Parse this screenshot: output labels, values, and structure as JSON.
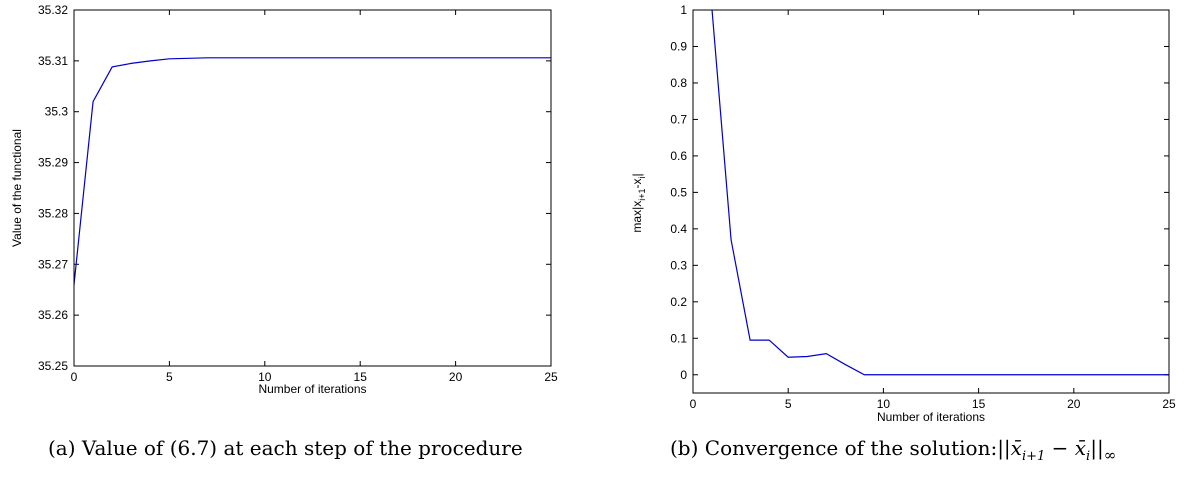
{
  "line_color": "#0000cc",
  "chart_data": [
    {
      "type": "line",
      "xlabel": "Number of iterations",
      "ylabel": "Value of the functional",
      "xlim": [
        0,
        25
      ],
      "ylim": [
        35.25,
        35.32
      ],
      "xticks": [
        0,
        5,
        10,
        15,
        20,
        25
      ],
      "xtick_labels": [
        "0",
        "5",
        "10",
        "15",
        "20",
        "25"
      ],
      "yticks": [
        35.25,
        35.26,
        35.27,
        35.28,
        35.29,
        35.3,
        35.31,
        35.32
      ],
      "ytick_labels": [
        "35.25",
        "35.26",
        "35.27",
        "35.28",
        "35.29",
        "35.3",
        "35.31",
        "35.32"
      ],
      "grid": false,
      "series": [
        {
          "x": [
            0,
            1,
            2,
            3,
            4,
            5,
            6,
            7,
            8,
            9,
            10,
            11,
            12,
            13,
            14,
            15,
            16,
            17,
            18,
            19,
            20,
            21,
            22,
            23,
            24,
            25
          ],
          "y": [
            35.266,
            35.302,
            35.3088,
            35.3095,
            35.31,
            35.3104,
            35.3105,
            35.3106,
            35.3106,
            35.3106,
            35.3106,
            35.3106,
            35.3106,
            35.3106,
            35.3106,
            35.3106,
            35.3106,
            35.3106,
            35.3106,
            35.3106,
            35.3106,
            35.3106,
            35.3106,
            35.3106,
            35.3106,
            35.3106
          ]
        }
      ]
    },
    {
      "type": "line",
      "xlabel": "Number of iterations",
      "ylabel": "max|x",
      "ylabel_sub1": "i+1",
      "ylabel_mid": "-x",
      "ylabel_sub2": "i",
      "ylabel_end": "|",
      "xlim": [
        0,
        25
      ],
      "ylim": [
        -0.05,
        1
      ],
      "xticks": [
        0,
        5,
        10,
        15,
        20,
        25
      ],
      "xtick_labels": [
        "0",
        "5",
        "10",
        "15",
        "20",
        "25"
      ],
      "yticks": [
        0,
        0.1,
        0.2,
        0.3,
        0.4,
        0.5,
        0.6,
        0.7,
        0.8,
        0.9,
        1
      ],
      "ytick_labels": [
        "0",
        "0.1",
        "0.2",
        "0.3",
        "0.4",
        "0.5",
        "0.6",
        "0.7",
        "0.8",
        "0.9",
        "1"
      ],
      "grid": false,
      "series": [
        {
          "x": [
            1,
            2,
            3,
            4,
            5,
            6,
            7,
            8,
            9,
            10,
            11,
            12,
            13,
            14,
            15,
            16,
            17,
            18,
            19,
            20,
            21,
            22,
            23,
            24,
            25
          ],
          "y": [
            1.0,
            0.37,
            0.095,
            0.095,
            0.048,
            0.05,
            0.058,
            0.028,
            0.0,
            0.0,
            0.0,
            0.0,
            0.0,
            0.0,
            0.0,
            0.0,
            0.0,
            0.0,
            0.0,
            0.0,
            0.0,
            0.0,
            0.0,
            0.0,
            0.0
          ]
        }
      ]
    }
  ],
  "captions": {
    "a": "(a) Value of (6.7) at each step of the procedure",
    "b_text": "(b) Convergence of the solution:",
    "b_math": "||x̄",
    "b_math_sub1": "i+1",
    "b_math_mid": " − x̄",
    "b_math_sub2": "i",
    "b_math_end": "||",
    "b_math_sub3": "∞"
  }
}
